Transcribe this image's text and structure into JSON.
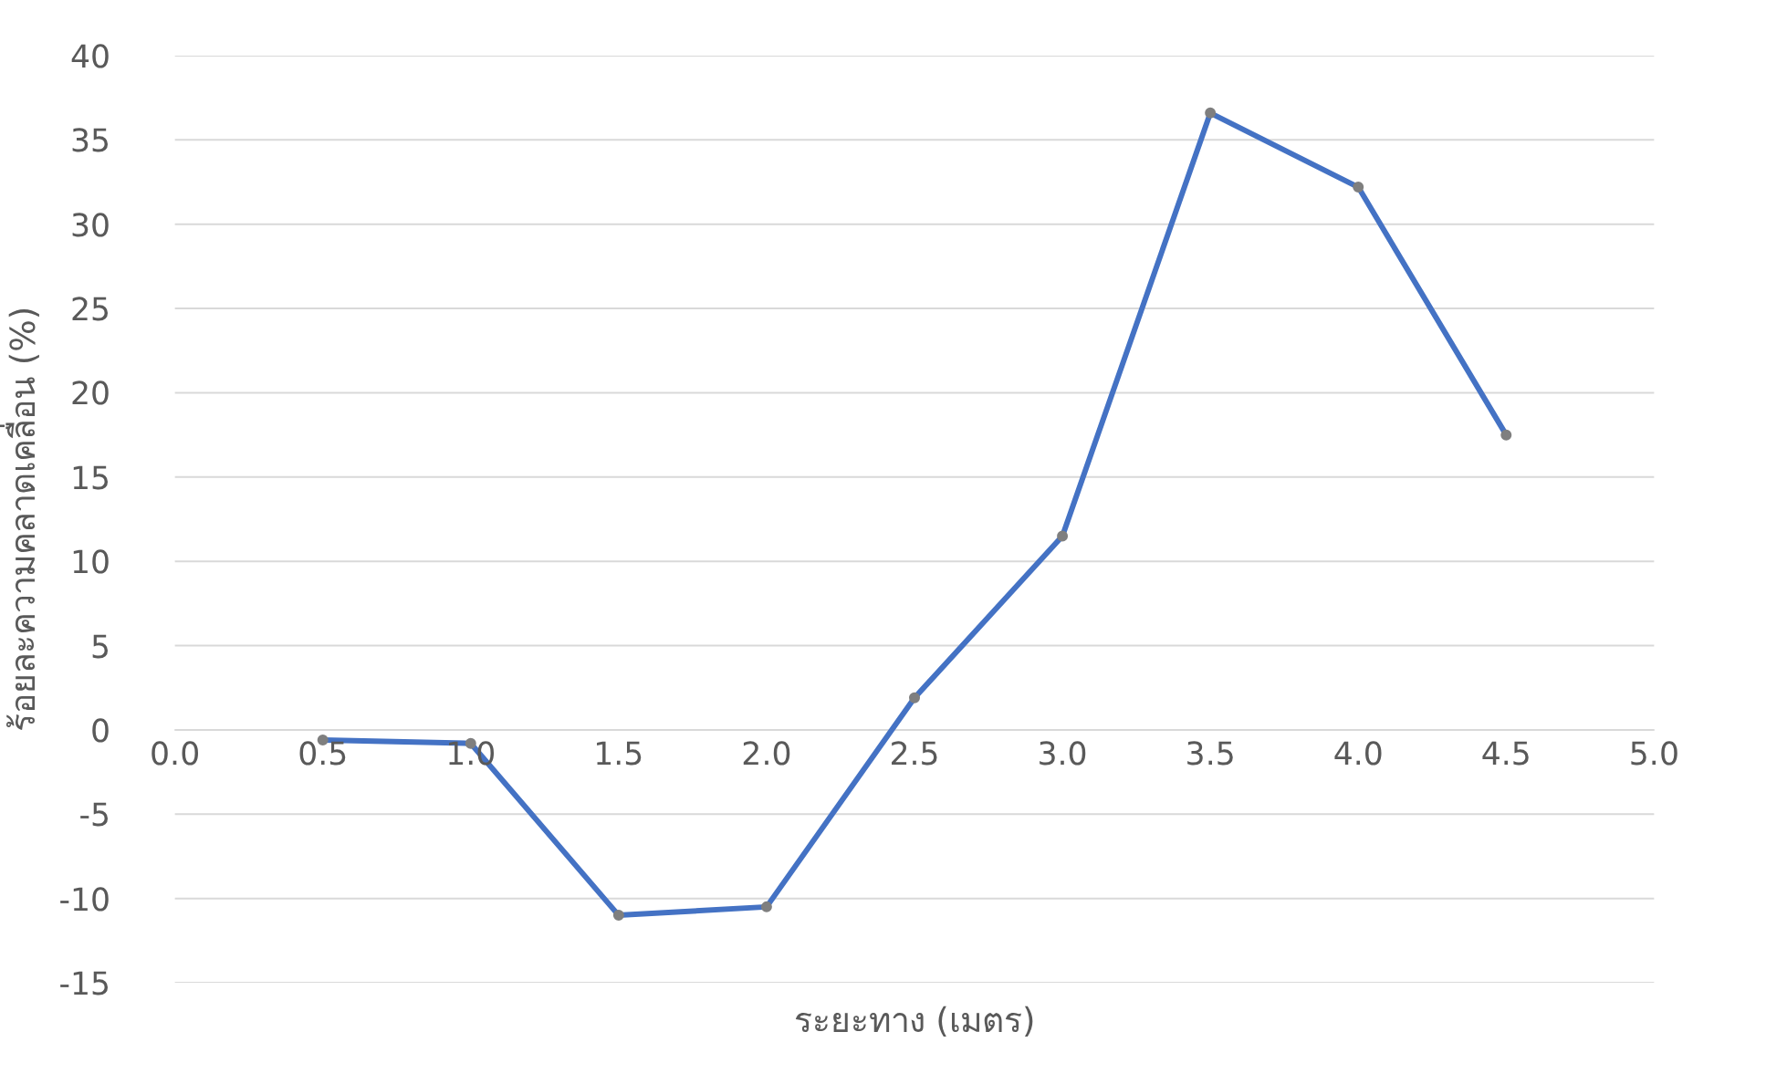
{
  "chart_data": {
    "type": "line",
    "xlabel": "ระยะทาง (เมตร)",
    "ylabel": "ร้อยละความคลาดเคลื่อน (%)",
    "x": [
      0.5,
      1.0,
      1.5,
      2.0,
      2.5,
      3.0,
      3.5,
      4.0,
      4.5
    ],
    "series": [
      {
        "color": "#4472c4",
        "values": [
          -0.6,
          -0.8,
          -11.0,
          -10.5,
          1.9,
          11.5,
          36.6,
          32.2,
          17.5
        ]
      }
    ],
    "xlim": [
      0,
      5
    ],
    "xticks": [
      {
        "value": 0,
        "label": "0.0"
      },
      {
        "value": 0.5,
        "label": "0.5"
      },
      {
        "value": 1,
        "label": "1.0"
      },
      {
        "value": 1.5,
        "label": "1.5"
      },
      {
        "value": 2,
        "label": "2.0"
      },
      {
        "value": 2.5,
        "label": "2.5"
      },
      {
        "value": 3,
        "label": "3.0"
      },
      {
        "value": 3.5,
        "label": "3.5"
      },
      {
        "value": 4,
        "label": "4.0"
      },
      {
        "value": 4.5,
        "label": "4.5"
      },
      {
        "value": 5,
        "label": "5.0"
      }
    ],
    "ylim": [
      -15,
      40
    ],
    "yticks": [
      -15,
      -10,
      -5,
      0,
      5,
      10,
      15,
      20,
      25,
      30,
      35,
      40
    ],
    "grid": "y",
    "marker": "circle",
    "line_style": "solid"
  }
}
